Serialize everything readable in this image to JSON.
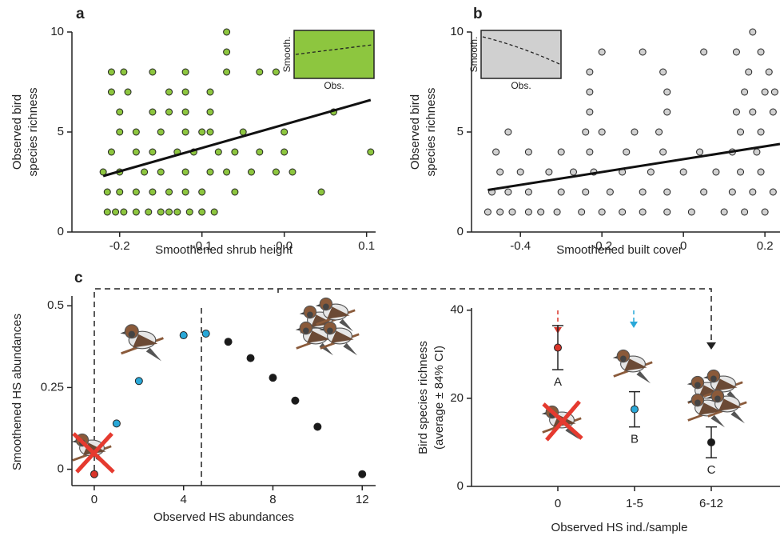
{
  "chart_data": [
    {
      "type": "scatter",
      "panel_label": "a",
      "x_label": "Smoothened shrub height",
      "y_label": [
        "Observed bird",
        "species richness"
      ],
      "xlim": [
        -0.258,
        0.111
      ],
      "ylim": [
        0,
        10
      ],
      "xticks": [
        -0.2,
        -0.1,
        {
          "value": 0,
          "label": "0.0"
        },
        0.1
      ],
      "yticks": [
        0,
        5,
        10
      ],
      "series": [
        {
          "color": "#8dc63f",
          "x": [
            -0.215,
            -0.205,
            -0.195,
            -0.18,
            -0.165,
            -0.15,
            -0.14,
            -0.13,
            -0.115,
            -0.1,
            -0.085,
            -0.215,
            -0.2,
            -0.18,
            -0.16,
            -0.14,
            -0.12,
            -0.1,
            -0.06,
            0.045,
            -0.22,
            -0.2,
            -0.17,
            -0.15,
            -0.12,
            -0.09,
            -0.07,
            -0.04,
            -0.01,
            0.01,
            -0.21,
            -0.18,
            -0.16,
            -0.13,
            -0.11,
            -0.08,
            -0.06,
            -0.03,
            0.0,
            0.105,
            -0.2,
            -0.18,
            -0.15,
            -0.12,
            -0.1,
            -0.09,
            -0.05,
            0.0,
            -0.2,
            -0.16,
            -0.14,
            -0.12,
            -0.09,
            0.06,
            -0.21,
            -0.19,
            -0.14,
            -0.12,
            -0.09,
            -0.21,
            -0.195,
            -0.16,
            -0.12,
            -0.07,
            -0.03,
            -0.01,
            -0.07,
            -0.07
          ],
          "values": [
            1,
            1,
            1,
            1,
            1,
            1,
            1,
            1,
            1,
            1,
            1,
            2,
            2,
            2,
            2,
            2,
            2,
            2,
            2,
            2,
            3,
            3,
            3,
            3,
            3,
            3,
            3,
            3,
            3,
            3,
            4,
            4,
            4,
            4,
            4,
            4,
            4,
            4,
            4,
            4,
            5,
            5,
            5,
            5,
            5,
            5,
            5,
            5,
            6,
            6,
            6,
            6,
            6,
            6,
            7,
            7,
            7,
            7,
            7,
            8,
            8,
            8,
            8,
            8,
            8,
            8,
            9,
            10
          ]
        }
      ],
      "trend": {
        "x": [
          -0.22,
          0.105
        ],
        "values": [
          2.8,
          6.6
        ]
      },
      "inset": {
        "x_label": "Obs.",
        "y_label": "Smooth.",
        "color": "#8dc63f"
      }
    },
    {
      "type": "scatter",
      "panel_label": "b",
      "x_label": "Smoothened built cover",
      "y_label": [
        "Observed bird",
        "species richness"
      ],
      "xlim": [
        -0.52,
        0.237
      ],
      "ylim": [
        0,
        10
      ],
      "xticks": [
        -0.4,
        -0.2,
        0,
        0.2
      ],
      "yticks": [
        0,
        5,
        10
      ],
      "series": [
        {
          "color": "#d0d0d0",
          "x": [
            -0.48,
            -0.45,
            -0.42,
            -0.38,
            -0.35,
            -0.31,
            -0.25,
            -0.2,
            -0.15,
            -0.1,
            -0.04,
            0.02,
            0.1,
            0.15,
            0.2,
            0.23,
            -0.47,
            -0.43,
            -0.38,
            -0.3,
            -0.24,
            -0.18,
            -0.1,
            -0.04,
            0.05,
            0.12,
            0.17,
            0.22,
            -0.45,
            -0.4,
            -0.33,
            -0.27,
            -0.22,
            -0.15,
            -0.08,
            0.0,
            0.08,
            0.14,
            0.19,
            0.23,
            -0.46,
            -0.38,
            -0.3,
            -0.23,
            -0.14,
            -0.05,
            0.04,
            0.12,
            0.18,
            0.23,
            -0.43,
            -0.24,
            -0.2,
            -0.12,
            -0.06,
            0.14,
            0.19,
            0.23,
            -0.23,
            -0.04,
            0.13,
            0.17,
            0.22,
            -0.23,
            -0.04,
            0.15,
            0.2,
            0.224,
            -0.23,
            -0.05,
            0.16,
            0.21,
            -0.2,
            -0.1,
            0.05,
            0.13,
            0.19,
            0.23,
            0.17
          ],
          "values": [
            1,
            1,
            1,
            1,
            1,
            1,
            1,
            1,
            1,
            1,
            1,
            1,
            1,
            1,
            1,
            1,
            2,
            2,
            2,
            2,
            2,
            2,
            2,
            2,
            2,
            2,
            2,
            2,
            3,
            3,
            3,
            3,
            3,
            3,
            3,
            3,
            3,
            3,
            3,
            3,
            4,
            4,
            4,
            4,
            4,
            4,
            4,
            4,
            4,
            4,
            5,
            5,
            5,
            5,
            5,
            5,
            5,
            5,
            6,
            6,
            6,
            6,
            6,
            7,
            7,
            7,
            7,
            7,
            8,
            8,
            8,
            8,
            9,
            9,
            9,
            9,
            9,
            9,
            10
          ]
        }
      ],
      "trend": {
        "x": [
          -0.48,
          0.237
        ],
        "values": [
          2.1,
          4.4
        ]
      },
      "inset": {
        "x_label": "Obs.",
        "y_label": "Smooth.",
        "color": "#d0d0d0"
      }
    },
    {
      "type": "scatter",
      "panel_label": "c",
      "x_label": "Observed HS abundances",
      "y_label": [
        "Smoothened HS abundances"
      ],
      "xlim": [
        -1,
        12.6
      ],
      "ylim": [
        -0.05,
        0.53
      ],
      "xticks": [
        0,
        4,
        8,
        12
      ],
      "yticks": [
        0,
        0.25,
        0.5
      ],
      "series": [
        {
          "color": "#d9352a",
          "x": [
            0
          ],
          "values": [
            -0.015
          ]
        },
        {
          "color": "#29a8d8",
          "x": [
            1,
            2,
            4,
            5
          ],
          "values": [
            0.14,
            0.27,
            0.41,
            0.415
          ]
        },
        {
          "color": "#1a1a1a",
          "x": [
            6,
            7,
            8,
            9,
            10,
            12
          ],
          "values": [
            0.39,
            0.34,
            0.28,
            0.21,
            0.13,
            -0.015
          ]
        }
      ]
    },
    {
      "type": "errorbar",
      "x_label": "Observed HS ind./sample",
      "y_label": [
        "Bird species richness",
        "(average ± 84% CI)"
      ],
      "ylim": [
        0,
        40.5
      ],
      "yticks": [
        0,
        20,
        40
      ],
      "categories": [
        "0",
        "1-5",
        "6-12"
      ],
      "values": [
        31.5,
        17.5,
        10
      ],
      "lower": [
        26.5,
        13.5,
        6.5
      ],
      "upper": [
        36.5,
        21.5,
        13.5
      ],
      "colors": [
        "#d9352a",
        "#29a8d8",
        "#1a1a1a"
      ],
      "point_labels": [
        "A",
        "B",
        "C"
      ]
    }
  ]
}
